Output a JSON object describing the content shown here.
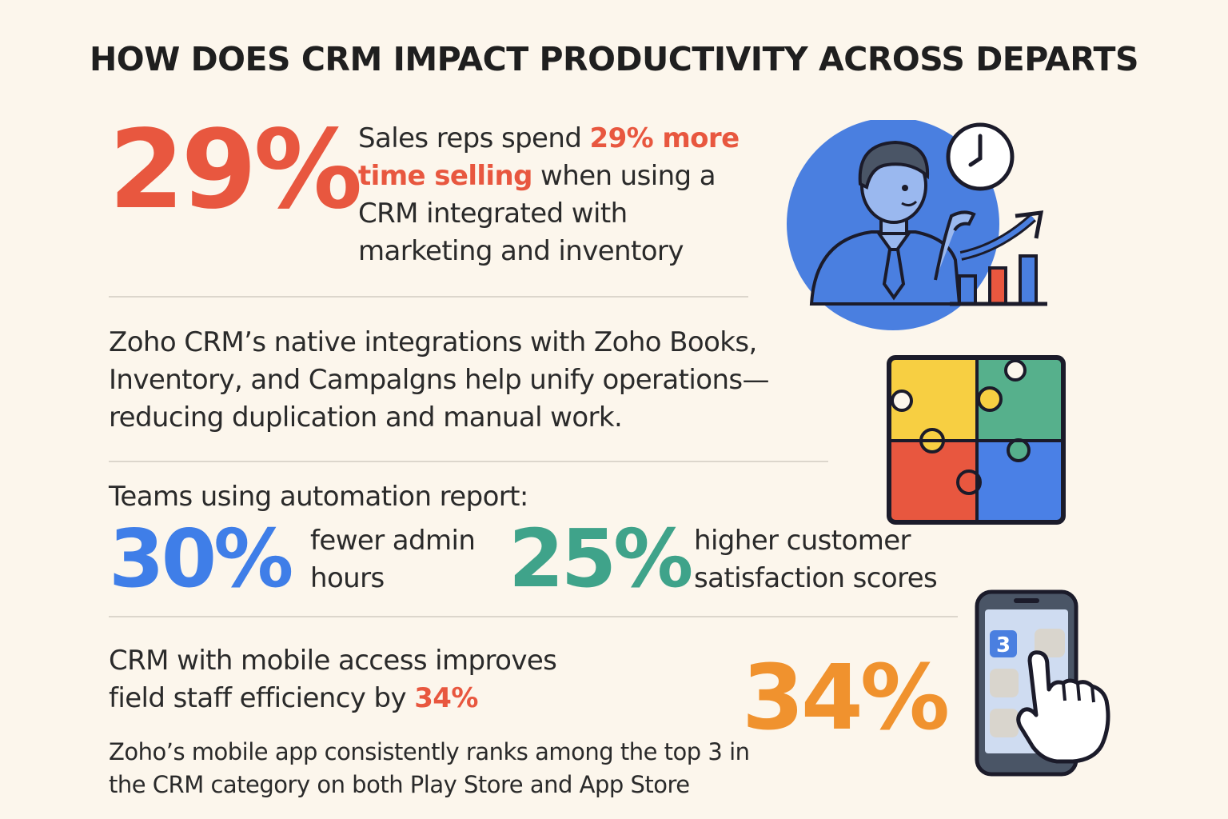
{
  "title": "HOW DOES CRM IMPACT PRODUCTIVITY ACROSS DEPARTS",
  "section1": {
    "stat": "29%",
    "text_before": "Sales reps spend ",
    "text_highlight": "29% more time selling",
    "text_after": " when using a CRM integrated with marketing and inventory"
  },
  "section2": {
    "text": "Zoho CRM’s native integrations with Zoho Books, Inventory, and Campalgns help unify operations—reducing duplication and manual work."
  },
  "section3": {
    "heading": "Teams using automation report:",
    "stat1": "30%",
    "stat1_text": "fewer admin hours",
    "stat2": "25%",
    "stat2_text": "higher customer satisfaction scores"
  },
  "section4": {
    "text_before": "CRM with mobile access improves field staff efficiency by ",
    "text_highlight": "34%",
    "stat": "34%",
    "subtext": "Zoho’s mobile app consistently ranks among the top 3 in the CRM category on both Play Store and App Store",
    "phone_badge": "3"
  },
  "colors": {
    "red": "#e8573f",
    "blue": "#3f7ee8",
    "green": "#3fa38a",
    "orange": "#f0922e",
    "yellow": "#f7cf42"
  },
  "icons": [
    "salesperson-chart-icon",
    "puzzle-icon",
    "mobile-touch-icon"
  ]
}
